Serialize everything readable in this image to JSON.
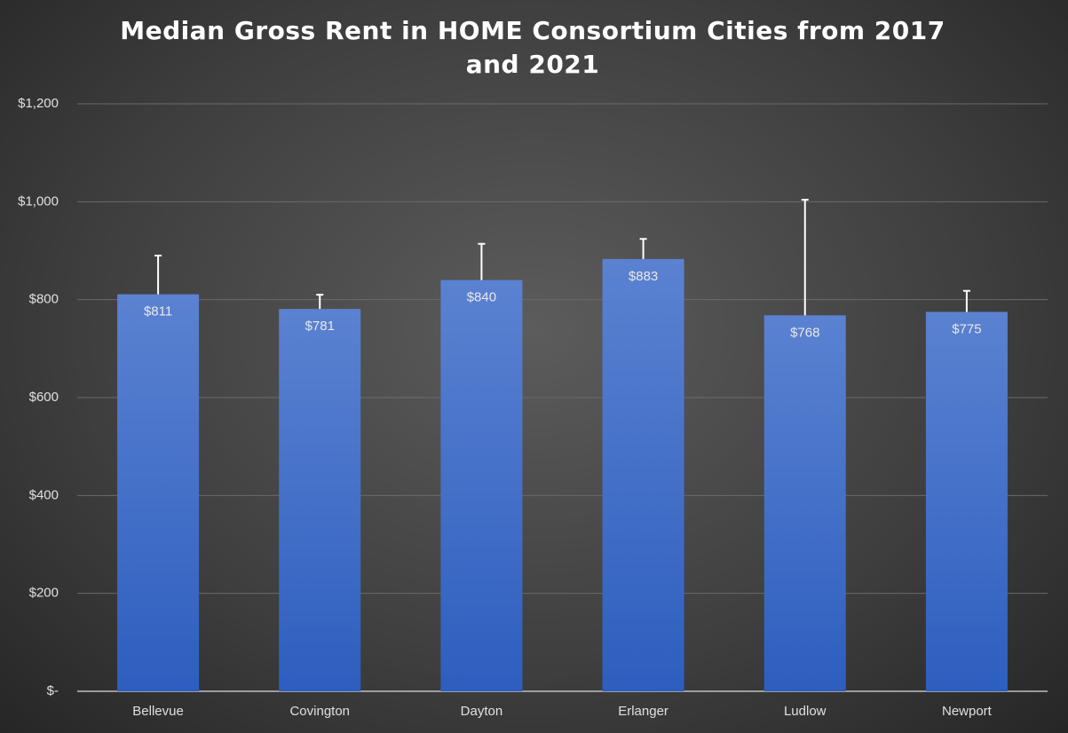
{
  "chart_data": {
    "type": "bar",
    "title": "Median Gross Rent in HOME Consortium Cities from 2017 and 2021",
    "categories": [
      "Bellevue",
      "Covington",
      "Dayton",
      "Erlanger",
      "Ludlow",
      "Newport"
    ],
    "values": [
      811,
      781,
      840,
      883,
      768,
      775
    ],
    "value_labels": [
      "$811",
      "$781",
      "$840",
      "$883",
      "$768",
      "$775"
    ],
    "errors": [
      79,
      29,
      74,
      41,
      236,
      43
    ],
    "color": "#4472c4",
    "ylim": [
      0,
      1200
    ],
    "yticks": [
      {
        "value": 0,
        "label": "$-"
      },
      {
        "value": 200,
        "label": "$200"
      },
      {
        "value": 400,
        "label": "$400"
      },
      {
        "value": 600,
        "label": "$600"
      },
      {
        "value": 800,
        "label": "$800"
      },
      {
        "value": 1000,
        "label": "$1,000"
      },
      {
        "value": 1200,
        "label": "$1,200"
      }
    ],
    "grid": true
  }
}
